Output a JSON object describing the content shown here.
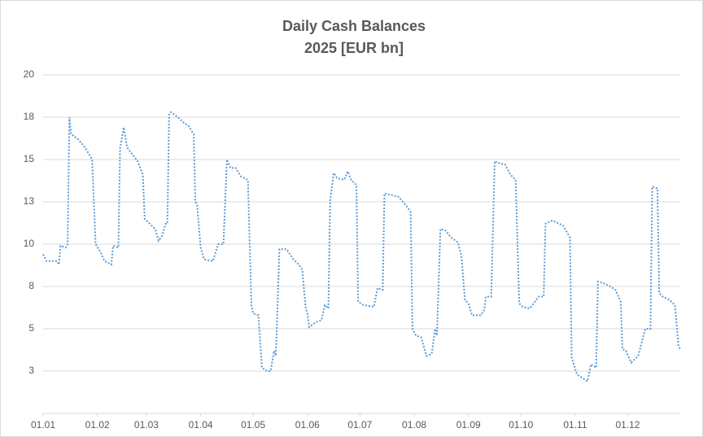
{
  "chart_data": {
    "type": "line",
    "title": "Daily Cash Balances",
    "subtitle": "2025 [EUR bn]",
    "x": [
      "01.01",
      "03.01",
      "09.01",
      "10.01",
      "11.01",
      "14.01",
      "15.01",
      "16.01",
      "17.01",
      "21.01",
      "25.01",
      "29.01",
      "31.01",
      "03.02",
      "05.02",
      "09.02",
      "10.02",
      "13.02",
      "14.02",
      "16.02",
      "18.02",
      "21.02",
      "24.02",
      "27.02",
      "28.02",
      "02.03",
      "06.03",
      "08.03",
      "10.03",
      "12.03",
      "13.03",
      "14.03",
      "15.03",
      "19.03",
      "22.03",
      "25.03",
      "28.03",
      "29.03",
      "30.03",
      "01.04",
      "03.04",
      "08.04",
      "11.04",
      "14.04",
      "16.04",
      "18.04",
      "21.04",
      "24.04",
      "28.04",
      "30.04",
      "01.05",
      "04.05",
      "06.05",
      "09.05",
      "11.05",
      "13.05",
      "14.05",
      "16.05",
      "20.05",
      "24.05",
      "27.05",
      "29.05",
      "31.05",
      "01.06",
      "02.06",
      "06.06",
      "09.06",
      "11.06",
      "13.06",
      "14.06",
      "16.06",
      "18.06",
      "22.06",
      "24.06",
      "26.06",
      "29.06",
      "30.06",
      "03.07",
      "09.07",
      "11.07",
      "14.07",
      "15.07",
      "19.07",
      "23.07",
      "28.07",
      "30.07",
      "31.07",
      "02.08",
      "05.08",
      "08.08",
      "11.08",
      "13.08",
      "14.08",
      "16.08",
      "19.08",
      "22.08",
      "26.08",
      "28.08",
      "30.08",
      "01.09",
      "03.09",
      "08.09",
      "10.09",
      "11.09",
      "14.09",
      "16.09",
      "18.09",
      "22.09",
      "25.09",
      "28.09",
      "30.09",
      "02.10",
      "06.10",
      "09.10",
      "11.10",
      "14.10",
      "15.10",
      "19.10",
      "21.10",
      "25.10",
      "29.10",
      "30.10",
      "02.11",
      "05.11",
      "08.11",
      "10.11",
      "13.11",
      "14.11",
      "17.11",
      "21.11",
      "24.11",
      "27.11",
      "28.11",
      "30.11",
      "03.12",
      "07.12",
      "11.12",
      "14.12",
      "15.12",
      "18.12",
      "19.12",
      "21.12",
      "25.12",
      "28.12",
      "30.12",
      "31.12"
    ],
    "series": [
      {
        "name": "Daily Cash Balance",
        "color": "#5b9bd5",
        "values": [
          9.4,
          9.0,
          9.0,
          8.8,
          9.9,
          9.8,
          10.0,
          17.5,
          16.5,
          16.2,
          15.7,
          15.0,
          10.0,
          9.5,
          9.0,
          8.8,
          9.9,
          9.8,
          15.7,
          16.9,
          15.7,
          15.3,
          14.9,
          14.1,
          11.5,
          11.3,
          10.9,
          10.2,
          10.5,
          11.2,
          11.2,
          17.7,
          17.8,
          17.5,
          17.2,
          17.0,
          16.5,
          12.5,
          12.3,
          9.8,
          9.1,
          9.0,
          10.0,
          10.0,
          15.0,
          14.5,
          14.5,
          14.0,
          13.8,
          6.4,
          5.9,
          5.8,
          2.7,
          2.5,
          2.5,
          3.7,
          3.4,
          9.7,
          9.7,
          9.1,
          8.8,
          8.5,
          6.2,
          5.9,
          5.1,
          5.4,
          5.5,
          6.4,
          6.2,
          12.6,
          14.2,
          13.9,
          13.8,
          14.3,
          13.8,
          13.5,
          6.6,
          6.4,
          6.3,
          7.4,
          7.3,
          13.0,
          12.9,
          12.8,
          12.2,
          11.9,
          5.0,
          4.6,
          4.5,
          3.4,
          3.5,
          5.0,
          4.6,
          10.9,
          10.8,
          10.4,
          10.1,
          9.3,
          6.7,
          6.5,
          5.8,
          5.8,
          6.1,
          6.9,
          6.9,
          14.9,
          14.8,
          14.7,
          14.1,
          13.8,
          6.5,
          6.3,
          6.2,
          6.6,
          6.9,
          6.9,
          11.2,
          11.4,
          11.3,
          11.1,
          10.4,
          3.3,
          2.3,
          2.1,
          1.9,
          2.9,
          2.7,
          7.8,
          7.7,
          7.5,
          7.3,
          6.6,
          3.8,
          3.7,
          3.0,
          3.4,
          5.0,
          5.0,
          13.4,
          13.3,
          7.1,
          6.9,
          6.7,
          6.4,
          4.0,
          3.8
        ]
      }
    ],
    "xlim": [
      "01.01",
      "31.12"
    ],
    "xticks": [
      "01.01",
      "01.02",
      "01.03",
      "01.04",
      "01.05",
      "01.06",
      "01.07",
      "01.08",
      "01.09",
      "01.10",
      "01.11",
      "01.12"
    ],
    "ylim": [
      0,
      20
    ],
    "yticks": [
      {
        "value": 2.5,
        "label": "3"
      },
      5,
      {
        "value": 7.5,
        "label": "8"
      },
      10,
      {
        "value": 12.5,
        "label": "13"
      },
      15,
      {
        "value": 17.5,
        "label": "18"
      },
      20
    ],
    "grid": true
  }
}
